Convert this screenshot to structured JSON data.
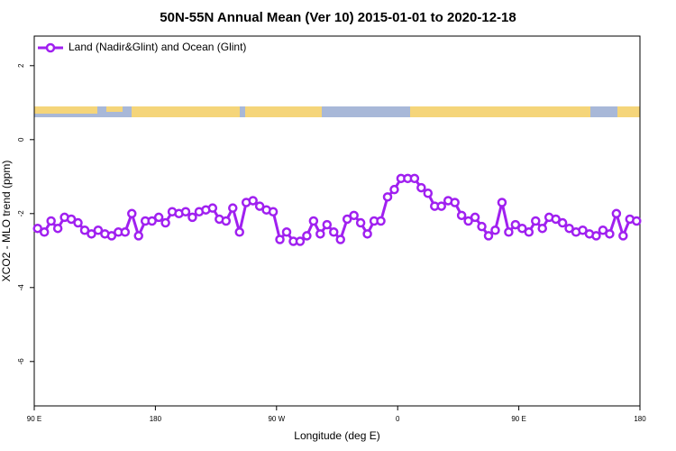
{
  "chart_data": {
    "type": "line",
    "title": "50N-55N Annual Mean (Ver 10)   2015-01-01 to 2020-12-18",
    "x_label": "Longitude (deg E)",
    "y_label": "XCO2 - MLO trend (ppm)",
    "xlim": [
      90,
      540
    ],
    "xticks": [
      {
        "value": 90,
        "label": "90 E"
      },
      {
        "value": 180,
        "label": "180"
      },
      {
        "value": 270,
        "label": "90 W"
      },
      {
        "value": 360,
        "label": "0"
      },
      {
        "value": 450,
        "label": "90 E"
      },
      {
        "value": 540,
        "label": "180"
      }
    ],
    "ylim": [
      -7.2,
      2.8
    ],
    "yticks": [
      2,
      0,
      -2,
      -4,
      -6
    ],
    "legend": "upper left",
    "x": [
      92.5,
      97.5,
      102.5,
      107.5,
      112.5,
      117.5,
      122.5,
      127.5,
      132.5,
      137.5,
      142.5,
      147.5,
      152.5,
      157.5,
      162.5,
      167.5,
      172.5,
      177.5,
      182.5,
      187.5,
      192.5,
      197.5,
      202.5,
      207.5,
      212.5,
      217.5,
      222.5,
      227.5,
      232.5,
      237.5,
      242.5,
      247.5,
      252.5,
      257.5,
      262.5,
      267.5,
      272.5,
      277.5,
      282.5,
      287.5,
      292.5,
      297.5,
      302.5,
      307.5,
      312.5,
      317.5,
      322.5,
      327.5,
      332.5,
      337.5,
      342.5,
      347.5,
      352.5,
      357.5,
      362.5,
      367.5,
      372.5,
      377.5,
      382.5,
      387.5,
      392.5,
      397.5,
      402.5,
      407.5,
      412.5,
      417.5,
      422.5,
      427.5,
      432.5,
      437.5,
      442.5,
      447.5,
      452.5,
      457.5,
      462.5,
      467.5,
      472.5,
      477.5,
      482.5,
      487.5,
      492.5,
      497.5,
      502.5,
      507.5,
      512.5,
      517.5,
      522.5,
      527.5,
      532.5,
      537.5
    ],
    "series": [
      {
        "name": "Land (Nadir&Glint) and Ocean (Glint)",
        "color": "#a020f0",
        "values": [
          -2.4,
          -2.5,
          -2.2,
          -2.4,
          -2.1,
          -2.15,
          -2.25,
          -2.45,
          -2.55,
          -2.45,
          -2.55,
          -2.6,
          -2.5,
          -2.5,
          -2.0,
          -2.6,
          -2.2,
          -2.2,
          -2.1,
          -2.25,
          -1.95,
          -2.0,
          -1.95,
          -2.1,
          -1.95,
          -1.9,
          -1.85,
          -2.15,
          -2.2,
          -1.85,
          -2.5,
          -1.7,
          -1.65,
          -1.8,
          -1.9,
          -1.95,
          -2.7,
          -2.5,
          -2.75,
          -2.75,
          -2.6,
          -2.2,
          -2.55,
          -2.3,
          -2.5,
          -2.7,
          -2.15,
          -2.05,
          -2.25,
          -2.55,
          -2.2,
          -2.2,
          -1.55,
          -1.35,
          -1.05,
          -1.05,
          -1.05,
          -1.3,
          -1.45,
          -1.8,
          -1.8,
          -1.65,
          -1.7,
          -2.05,
          -2.2,
          -2.1,
          -2.35,
          -2.6,
          -2.45,
          -1.7,
          -2.5,
          -2.3,
          -2.4,
          -2.5,
          -2.2,
          -2.4,
          -2.1,
          -2.15,
          -2.25,
          -2.4,
          -2.5,
          -2.45,
          -2.55,
          -2.6,
          -2.45,
          -2.55,
          -2.0,
          -2.6,
          -2.15,
          -2.2
        ]
      }
    ]
  }
}
